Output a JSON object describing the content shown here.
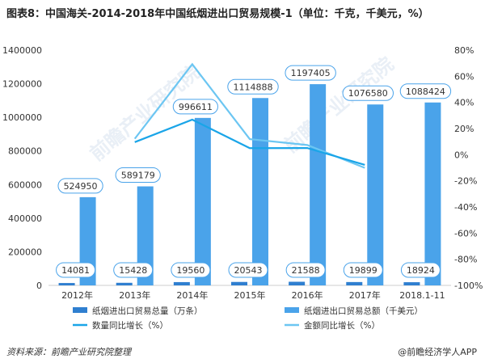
{
  "title": "图表8：中国海关-2014-2018年中国纸烟进出口贸易规模-1（单位：千克，千美元，%）",
  "footer": {
    "source": "资料来源：前瞻产业研究院整理",
    "brand": "@前瞻经济学人APP"
  },
  "watermark": "前瞻产业研究院",
  "colors": {
    "volume": "#2f7fd0",
    "amount": "#4aa3ea",
    "qty_growth": "#1aa5e8",
    "amt_growth": "#6cc6f2"
  },
  "chart_data": {
    "type": "bar",
    "categories": [
      "2012年",
      "2013年",
      "2014年",
      "2015年",
      "2016年",
      "2017年",
      "2018.1-11"
    ],
    "ylim": [
      0,
      1400000
    ],
    "y_ticks": [
      "0",
      "200000",
      "400000",
      "600000",
      "800000",
      "1000000",
      "1200000",
      "1400000"
    ],
    "y2lim": [
      -100,
      80
    ],
    "y2_ticks": [
      "-100%",
      "-80%",
      "-60%",
      "-40%",
      "-20%",
      "0%",
      "20%",
      "40%",
      "60%",
      "80%"
    ],
    "series": [
      {
        "name": "纸烟进出口贸易总量（万条）",
        "type": "bar",
        "values": [
          14081,
          15428,
          19560,
          20543,
          21588,
          19899,
          18924
        ],
        "labels": [
          "14081",
          "15428",
          "19560",
          "20543",
          "21588",
          "19899",
          "18924"
        ]
      },
      {
        "name": "纸烟进出口贸易总额（千美元）",
        "type": "bar",
        "values": [
          524950,
          589179,
          996611,
          1114888,
          1197405,
          1076580,
          1088424
        ],
        "labels": [
          "524950",
          "589179",
          "996611",
          "1114888",
          "1197405",
          "1076580",
          "1088424"
        ]
      },
      {
        "name": "数量同比增长（%）",
        "type": "line",
        "axis": "right",
        "values": [
          null,
          9.6,
          26.8,
          5.0,
          5.1,
          -7.8,
          null
        ]
      },
      {
        "name": "金额同比增长（%）",
        "type": "line",
        "axis": "right",
        "values": [
          null,
          12.2,
          69.2,
          11.9,
          7.4,
          -10.1,
          null
        ]
      }
    ],
    "legend_position": "bottom",
    "grid": false
  }
}
